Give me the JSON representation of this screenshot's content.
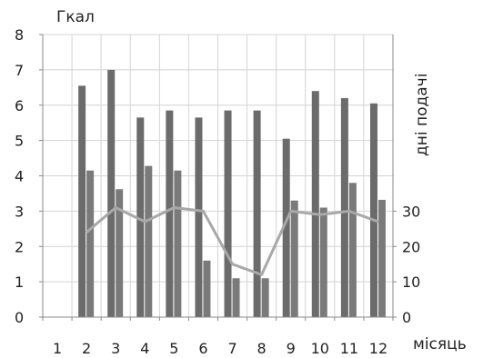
{
  "chart_data": {
    "type": "bar",
    "categories": [
      "1",
      "2",
      "3",
      "4",
      "5",
      "6",
      "7",
      "8",
      "9",
      "10",
      "11",
      "12"
    ],
    "series": [
      {
        "axis": "left",
        "type": "bar",
        "color": "#6b6b6b",
        "values": [
          null,
          6.55,
          7.0,
          5.65,
          5.85,
          5.65,
          5.85,
          5.85,
          5.05,
          6.4,
          6.2,
          6.05
        ]
      },
      {
        "axis": "left",
        "type": "bar",
        "color": "#7a7a7a",
        "values": [
          null,
          4.15,
          3.62,
          4.28,
          4.15,
          1.6,
          1.1,
          1.1,
          3.3,
          3.1,
          3.8,
          3.32
        ]
      },
      {
        "axis": "right",
        "type": "line",
        "color": "#a8a8a8",
        "values": [
          null,
          24,
          31,
          27,
          31,
          30,
          15,
          12,
          30,
          29,
          30,
          27
        ]
      }
    ],
    "ylabel_left": "Гкал",
    "ylabel_right": "дні подачі",
    "xlabel": "місяць",
    "ylim_left": [
      0,
      8
    ],
    "yticks_left": [
      0,
      1,
      2,
      3,
      4,
      5,
      6,
      7,
      8
    ],
    "ylim_right": [
      0,
      80
    ],
    "yticks_right": [
      0,
      10,
      20,
      30
    ],
    "grid": true,
    "legend": "none"
  }
}
